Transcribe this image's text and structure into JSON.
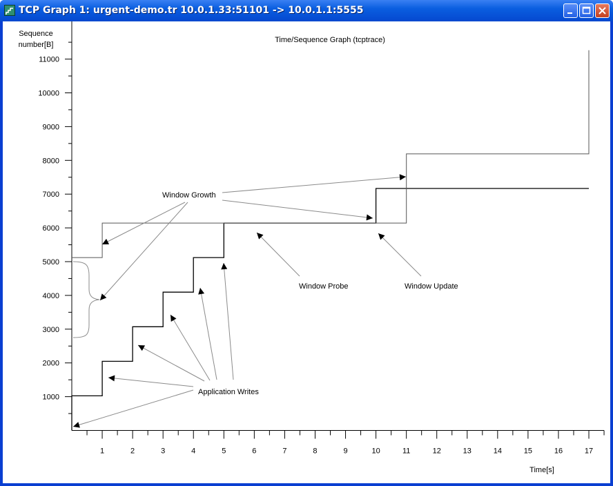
{
  "window": {
    "title": "TCP Graph 1: urgent-demo.tr 10.0.1.33:51101 -> 10.0.1.1:5555"
  },
  "graph": {
    "title": "Time/Sequence Graph (tcptrace)",
    "y_axis_label_line1": "Sequence",
    "y_axis_label_line2": "number[B]",
    "x_axis_label": "Time[s]"
  },
  "annotations": {
    "window_growth": "Window Growth",
    "window_probe": "Window Probe",
    "window_update": "Window Update",
    "application_writes": "Application Writes"
  },
  "chart_data": {
    "type": "line",
    "title": "Time/Sequence Graph (tcptrace)",
    "xlabel": "Time[s]",
    "ylabel": "Sequence number[B]",
    "xlim": [
      0,
      17.5
    ],
    "ylim": [
      0,
      12000
    ],
    "x_ticks": [
      1,
      2,
      3,
      4,
      5,
      6,
      7,
      8,
      9,
      10,
      11,
      12,
      13,
      14,
      15,
      16,
      17
    ],
    "y_ticks": [
      1000,
      2000,
      3000,
      4000,
      5000,
      6000,
      7000,
      8000,
      9000,
      10000,
      11000
    ],
    "series": [
      {
        "name": "",
        "role": "data-sent",
        "points": [
          [
            0,
            0
          ],
          [
            0,
            1024
          ],
          [
            1,
            1024
          ],
          [
            1,
            2048
          ],
          [
            2,
            2048
          ],
          [
            2,
            3072
          ],
          [
            3,
            3072
          ],
          [
            3,
            4096
          ],
          [
            4,
            4096
          ],
          [
            4,
            5120
          ],
          [
            5,
            5120
          ],
          [
            5,
            6144
          ],
          [
            10,
            6144
          ],
          [
            10,
            7168
          ],
          [
            17,
            7168
          ]
        ]
      },
      {
        "name": "",
        "role": "receive-window",
        "points": [
          [
            0,
            5120
          ],
          [
            1,
            5120
          ],
          [
            1,
            6144
          ],
          [
            11,
            6144
          ],
          [
            11,
            8192
          ],
          [
            17,
            8192
          ],
          [
            17,
            11264
          ]
        ]
      }
    ],
    "annotations": [
      {
        "text": "Window Growth",
        "x": 4,
        "y": 7150
      },
      {
        "text": "Window Probe",
        "x": 8.2,
        "y": 4380
      },
      {
        "text": "Window Update",
        "x": 11.8,
        "y": 4380
      },
      {
        "text": "Application Writes",
        "x": 5.6,
        "y": 1280
      }
    ]
  }
}
